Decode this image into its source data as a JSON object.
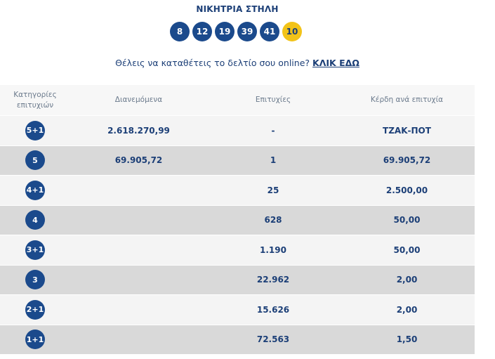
{
  "winning_title": "ΝΙΚΗΤΡΙΑ ΣΤΗΛΗ",
  "winning_numbers": [
    "8",
    "12",
    "19",
    "39",
    "41"
  ],
  "joker_number": "10",
  "online_prompt": "Θέλεις να καταθέτεις το δελτίο σου online?",
  "online_link": "ΚΛΙΚ ΕΔΩ",
  "table": {
    "headers": {
      "category_line1": "Κατηγορίες",
      "category_line2": "επιτυχιών",
      "distributed": "Διανεμόμενα",
      "winners": "Επιτυχίες",
      "prize": "Κέρδη ανά επιτυχία"
    },
    "rows": [
      {
        "category": "5+1",
        "distributed": "2.618.270,99",
        "winners": "-",
        "prize": "ΤΖΑΚ-ΠΟΤ"
      },
      {
        "category": "5",
        "distributed": "69.905,72",
        "winners": "1",
        "prize": "69.905,72"
      },
      {
        "category": "4+1",
        "distributed": "",
        "winners": "25",
        "prize": "2.500,00"
      },
      {
        "category": "4",
        "distributed": "",
        "winners": "628",
        "prize": "50,00"
      },
      {
        "category": "3+1",
        "distributed": "",
        "winners": "1.190",
        "prize": "50,00"
      },
      {
        "category": "3",
        "distributed": "",
        "winners": "22.962",
        "prize": "2,00"
      },
      {
        "category": "2+1",
        "distributed": "",
        "winners": "15.626",
        "prize": "2,00"
      },
      {
        "category": "1+1",
        "distributed": "",
        "winners": "72.563",
        "prize": "1,50"
      }
    ]
  },
  "colors": {
    "primary_blue": "#1b4a8c",
    "joker_yellow": "#f2c319",
    "text_blue": "#1c3f77",
    "row_light": "#f4f4f4",
    "row_dark": "#d9d9d9"
  }
}
